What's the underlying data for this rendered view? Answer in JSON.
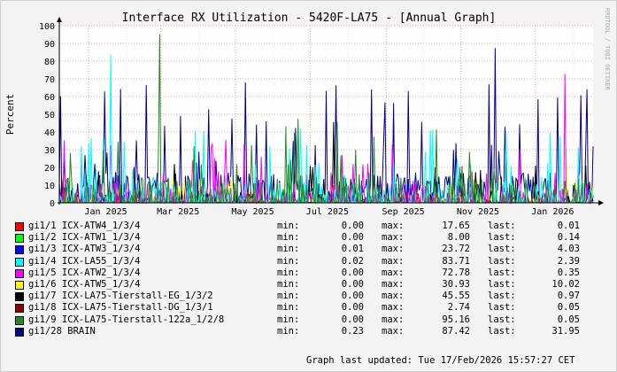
{
  "chart_data": {
    "type": "line",
    "title": "Interface RX Utilization - 5420F-LA75 - [Annual Graph]",
    "ylabel": "Percent",
    "ylim": [
      0,
      100
    ],
    "yticks": [
      "0",
      "10",
      "20",
      "30",
      "40",
      "50",
      "60",
      "70",
      "80",
      "90",
      "100"
    ],
    "xticks": [
      "Jan 2025",
      "Mar 2025",
      "May 2025",
      "Jul 2025",
      "Sep 2025",
      "Nov 2025",
      "Jan 2026"
    ],
    "xrange": [
      "2024-12-08",
      "2026-02-17"
    ],
    "watermark": "RRDTOOL / TOBI OETIKER",
    "grid": true,
    "series": [
      {
        "name": "gi1/1 ICX-ATW4_1/3/4",
        "color": "#ff0000",
        "min": "0.00",
        "max": "17.65",
        "last": "0.01"
      },
      {
        "name": "gi1/2 ICX-ATW1_1/3/4",
        "color": "#00ff00",
        "min": "0.00",
        "max": "8.00",
        "last": "0.14"
      },
      {
        "name": "gi1/3 ICX-ATW3_1/3/4",
        "color": "#0000ff",
        "min": "0.01",
        "max": "23.72",
        "last": "4.03"
      },
      {
        "name": "gi1/4 ICX-LA55_1/3/4",
        "color": "#00ffff",
        "min": "0.02",
        "max": "83.71",
        "last": "2.39"
      },
      {
        "name": "gi1/5 ICX-ATW2_1/3/4",
        "color": "#ff00ff",
        "min": "0.00",
        "max": "72.78",
        "last": "0.35"
      },
      {
        "name": "gi1/6 ICX-ATW5_1/3/4",
        "color": "#ffff00",
        "min": "0.00",
        "max": "30.93",
        "last": "10.02"
      },
      {
        "name": "gi1/7 ICX-LA75-Tierstall-EG_1/3/2",
        "color": "#000000",
        "min": "0.00",
        "max": "45.55",
        "last": "0.97"
      },
      {
        "name": "gi1/8 ICX-LA75-Tierstall-DG_1/3/1",
        "color": "#8b0000",
        "min": "0.00",
        "max": "2.74",
        "last": "0.05"
      },
      {
        "name": "gi1/9 ICX-LA75-Tierstall-122a_1/2/8",
        "color": "#228b22",
        "min": "0.00",
        "max": "95.16",
        "last": "0.05"
      },
      {
        "name": "gi1/28 BRAIN",
        "color": "#00008b",
        "min": "0.23",
        "max": "87.42",
        "last": "31.95"
      }
    ]
  },
  "legend_labels": {
    "min": "min:",
    "max": "max:",
    "last": "last:"
  },
  "footer": {
    "updated": "Graph last updated: Tue 17/Feb/2026 15:57:27 CET"
  }
}
